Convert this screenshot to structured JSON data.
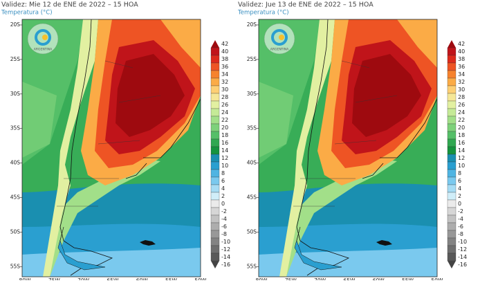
{
  "panels": [
    {
      "title": "Validez: Mie 12 de ENE de 2022 – 15 HOA",
      "subtitle": "Temperatura (°C)"
    },
    {
      "title": "Validez: Jue 13 de ENE de 2022 – 15 HOA",
      "subtitle": "Temperatura (°C)"
    }
  ],
  "logo_text": "ARGENTINA",
  "lat_labels": [
    "20S",
    "25S",
    "30S",
    "35S",
    "40S",
    "45S",
    "50S",
    "55S"
  ],
  "lon_labels": [
    "80W",
    "75W",
    "70W",
    "65W",
    "60W",
    "55W",
    "50W"
  ],
  "colorbar": {
    "ticks": [
      42,
      40,
      38,
      36,
      34,
      32,
      30,
      28,
      26,
      24,
      22,
      20,
      18,
      16,
      14,
      12,
      10,
      8,
      6,
      4,
      2,
      0,
      -2,
      -4,
      -6,
      -8,
      -10,
      -12,
      -14,
      -16
    ],
    "colors": [
      "#9e0a0f",
      "#c0141a",
      "#dc2a1c",
      "#ee5424",
      "#f6822d",
      "#fbab46",
      "#fdcf74",
      "#f5e797",
      "#e2f0a1",
      "#c5ea97",
      "#a2df89",
      "#7dd17a",
      "#55bf68",
      "#30a851",
      "#15933e",
      "#1a8fb0",
      "#2a9fd0",
      "#4fb4e2",
      "#7ac9ee",
      "#a6dcf4",
      "#d0eef9",
      "#ebebeb",
      "#d6d6d6",
      "#c2c2c2",
      "#adadad",
      "#989898",
      "#838383",
      "#6e6e6e",
      "#595959",
      "#444444"
    ]
  }
}
